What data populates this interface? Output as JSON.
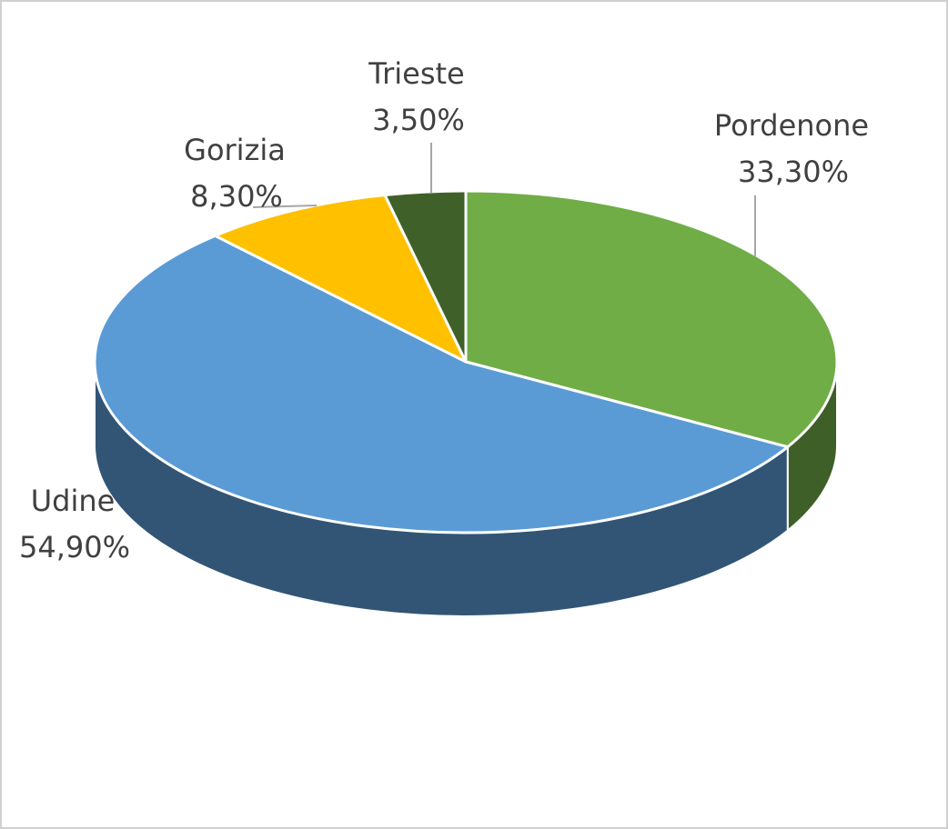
{
  "chart_data": {
    "type": "pie",
    "categories": [
      "Pordenone",
      "Udine",
      "Gorizia",
      "Trieste"
    ],
    "values": [
      33.3,
      54.9,
      8.3,
      3.5
    ],
    "value_labels": [
      "33,30%",
      "54,90%",
      "8,30%",
      "3,50%"
    ],
    "colors": [
      "#70ad47",
      "#5b9bd5",
      "#ffc000",
      "#3f6129"
    ]
  }
}
